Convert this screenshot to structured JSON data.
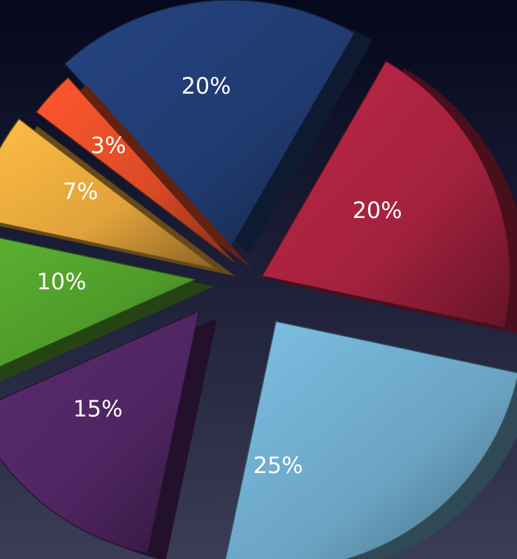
{
  "chart_data": {
    "type": "pie",
    "title": "",
    "slices": [
      {
        "value": 20,
        "label": "20%",
        "color": "#1f3a6e"
      },
      {
        "value": 20,
        "label": "20%",
        "color": "#a3213e"
      },
      {
        "value": 25,
        "label": "25%",
        "color": "#6aa3c2"
      },
      {
        "value": 15,
        "label": "15%",
        "color": "#4e2560"
      },
      {
        "value": 10,
        "label": "10%",
        "color": "#4f9a2a"
      },
      {
        "value": 7,
        "label": "7%",
        "color": "#e0a23a"
      },
      {
        "value": 3,
        "label": "3%",
        "color": "#d94a26"
      }
    ],
    "legend": false
  }
}
